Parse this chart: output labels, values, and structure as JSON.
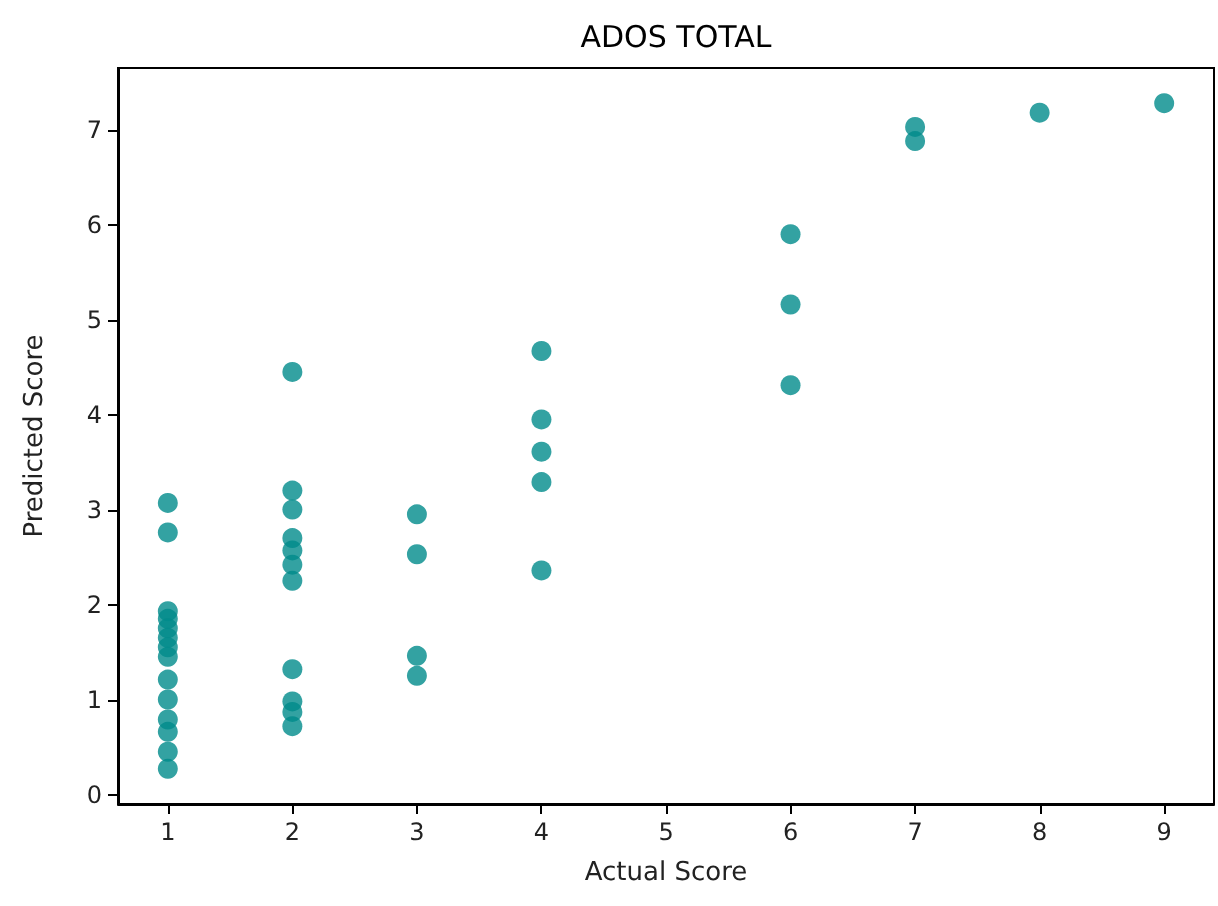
{
  "chart_data": {
    "type": "scatter",
    "title": "ADOS TOTAL",
    "xlabel": "Actual Score",
    "ylabel": "Predicted Score",
    "xlim": [
      0.6,
      9.4
    ],
    "ylim": [
      -0.1,
      7.65
    ],
    "xticks": [
      1,
      2,
      3,
      4,
      5,
      6,
      7,
      8,
      9
    ],
    "yticks": [
      0,
      1,
      2,
      3,
      4,
      5,
      6,
      7
    ],
    "grid": false,
    "marker": "circle",
    "series": [
      {
        "color": "#008b8b",
        "x": [
          1,
          1,
          1,
          1,
          1,
          1,
          1,
          1,
          1,
          1,
          1,
          1,
          1,
          1,
          2,
          2,
          2,
          2,
          2,
          2,
          2,
          2,
          2,
          2,
          2,
          3,
          3,
          3,
          3,
          4,
          4,
          4,
          4,
          4,
          6,
          6,
          6,
          7,
          7,
          8,
          9
        ],
        "values": [
          3.07,
          2.76,
          1.93,
          1.85,
          1.75,
          1.65,
          1.55,
          1.45,
          1.21,
          1.0,
          0.79,
          0.66,
          0.45,
          0.27,
          4.45,
          3.2,
          3.0,
          2.7,
          2.57,
          2.42,
          2.25,
          1.32,
          0.98,
          0.87,
          0.72,
          2.95,
          2.53,
          1.46,
          1.25,
          4.67,
          3.95,
          3.61,
          3.29,
          2.36,
          5.9,
          5.16,
          4.31,
          7.03,
          6.88,
          7.18,
          7.28
        ]
      }
    ]
  }
}
